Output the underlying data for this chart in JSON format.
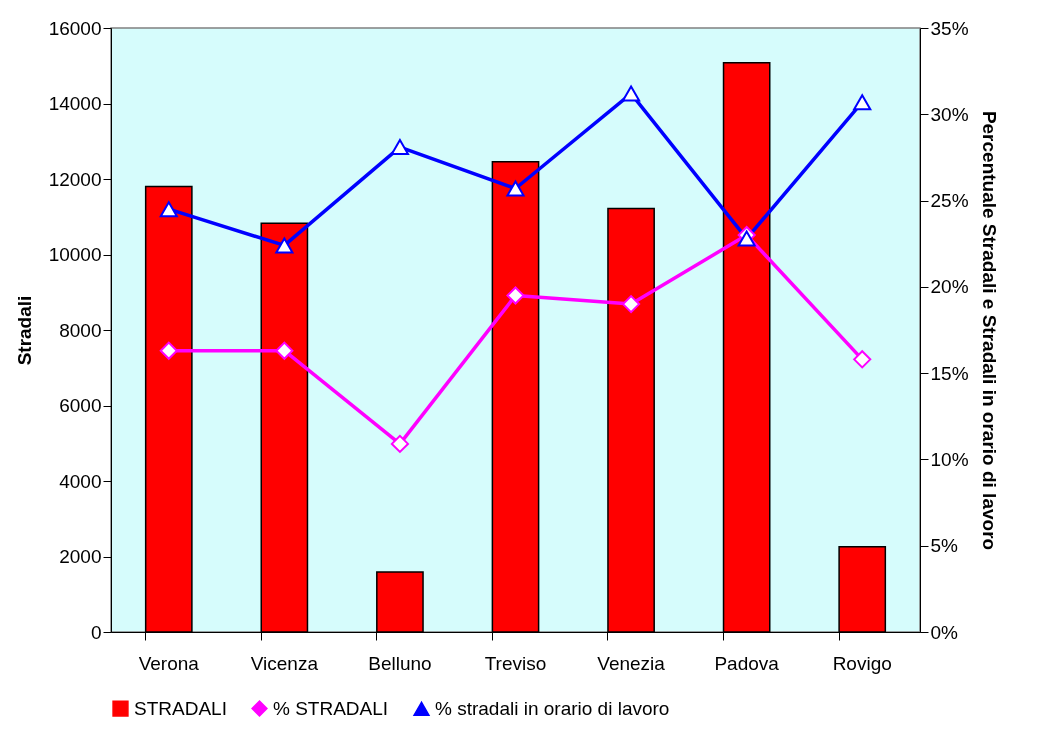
{
  "chart_data": {
    "type": "bar",
    "categories": [
      "Verona",
      "Vicenza",
      "Belluno",
      "Treviso",
      "Venezia",
      "Padova",
      "Rovigo"
    ],
    "series": [
      {
        "name": "STRADALI",
        "color": "#ff0000",
        "values": [
          11800,
          10830,
          1590,
          12460,
          11220,
          15080,
          2260
        ]
      },
      {
        "name": "% STRADALI",
        "type": "line",
        "axis": "y2",
        "marker": "diamond",
        "color": "#ff00ff",
        "values": [
          16.3,
          16.3,
          10.9,
          19.5,
          19.0,
          23.0,
          15.8
        ]
      },
      {
        "name": "% stradali in orario di lavoro",
        "type": "line",
        "axis": "y2",
        "marker": "triangle",
        "color": "#0000ff",
        "values": [
          24.5,
          22.4,
          28.1,
          25.7,
          31.2,
          22.8,
          30.7
        ]
      }
    ],
    "ylabel": "Stradali",
    "y2label": "Percentuale Stradali e Stradali in orario di lavoro",
    "ylim": [
      0,
      16000
    ],
    "yticks": [
      0,
      2000,
      4000,
      6000,
      8000,
      10000,
      12000,
      14000,
      16000
    ],
    "y2lim": [
      0,
      35
    ],
    "y2ticks": [
      {
        "value": 0,
        "label": "0%"
      },
      {
        "value": 5,
        "label": "5%"
      },
      {
        "value": 10,
        "label": "10%"
      },
      {
        "value": 15,
        "label": "15%"
      },
      {
        "value": 20,
        "label": "20%"
      },
      {
        "value": 25,
        "label": "25%"
      },
      {
        "value": 30,
        "label": "30%"
      },
      {
        "value": 35,
        "label": "35%"
      }
    ],
    "legend": "bottom",
    "grid": false
  }
}
